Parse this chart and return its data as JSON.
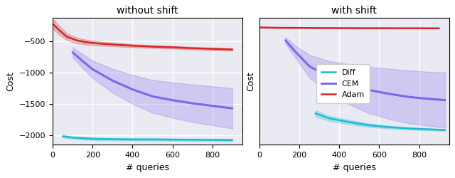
{
  "title_left": "without shift",
  "title_right": "with shift",
  "xlabel": "# queries",
  "ylabel": "Cost",
  "colors": {
    "diff": "#17becf",
    "cem": "#7b68ee",
    "adam": "#d62728"
  },
  "left": {
    "xlim": [
      0,
      950
    ],
    "ylim": [
      -2150,
      -130
    ],
    "yticks": [
      -2000,
      -1500,
      -1000,
      -500
    ],
    "xticks": [
      0,
      200,
      400,
      600,
      800
    ],
    "diff_x": [
      50,
      100,
      150,
      200,
      300,
      400,
      500,
      600,
      700,
      800,
      900
    ],
    "diff_y": [
      -2015,
      -2035,
      -2045,
      -2055,
      -2060,
      -2065,
      -2065,
      -2068,
      -2070,
      -2072,
      -2075
    ],
    "diff_std": [
      20,
      20,
      20,
      20,
      18,
      18,
      18,
      18,
      18,
      18,
      18
    ],
    "cem_x": [
      100,
      150,
      200,
      300,
      400,
      500,
      600,
      700,
      800,
      900
    ],
    "cem_y": [
      -680,
      -820,
      -950,
      -1130,
      -1270,
      -1380,
      -1440,
      -1490,
      -1530,
      -1570
    ],
    "cem_std": [
      80,
      110,
      140,
      190,
      230,
      260,
      280,
      300,
      310,
      320
    ],
    "adam_x": [
      5,
      30,
      70,
      120,
      170,
      230,
      300,
      400,
      500,
      600,
      700,
      800,
      900
    ],
    "adam_y": [
      -240,
      -320,
      -430,
      -490,
      -520,
      -540,
      -555,
      -575,
      -590,
      -600,
      -615,
      -625,
      -635
    ],
    "adam_std": [
      80,
      70,
      55,
      45,
      38,
      33,
      28,
      25,
      22,
      21,
      20,
      20,
      20
    ]
  },
  "right": {
    "xlim": [
      0,
      950
    ],
    "ylim": [
      -2150,
      -130
    ],
    "yticks": [],
    "xticks": [
      0,
      200,
      400,
      600,
      800
    ],
    "diff_x": [
      280,
      350,
      450,
      550,
      650,
      750,
      850,
      930
    ],
    "diff_y": [
      -1650,
      -1730,
      -1790,
      -1840,
      -1870,
      -1890,
      -1905,
      -1915
    ],
    "diff_std": [
      50,
      40,
      35,
      28,
      22,
      18,
      16,
      15
    ],
    "cem_x": [
      130,
      180,
      250,
      350,
      450,
      550,
      650,
      750,
      850,
      930
    ],
    "cem_y": [
      -490,
      -670,
      -900,
      -1080,
      -1190,
      -1280,
      -1340,
      -1390,
      -1420,
      -1440
    ],
    "cem_std": [
      50,
      100,
      180,
      260,
      320,
      370,
      400,
      420,
      430,
      440
    ],
    "adam_x": [
      5,
      100,
      200,
      300,
      400,
      500,
      600,
      700,
      800,
      900
    ],
    "adam_y": [
      -285,
      -290,
      -292,
      -294,
      -295,
      -296,
      -296,
      -297,
      -297,
      -298
    ],
    "adam_std": [
      8,
      6,
      5,
      5,
      5,
      5,
      5,
      5,
      5,
      5
    ]
  },
  "bg_color": "#eaeaf2",
  "grid_color": "#ffffff",
  "figure_width": 6.4,
  "figure_height": 2.5,
  "dpi": 100
}
